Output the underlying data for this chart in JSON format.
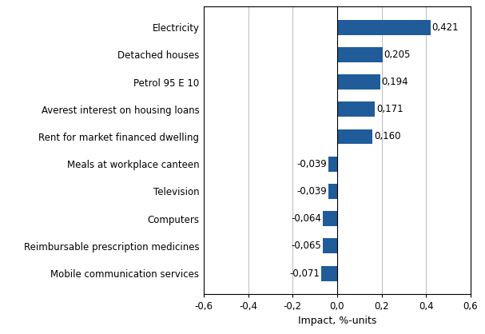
{
  "categories": [
    "Mobile communication services",
    "Reimbursable prescription medicines",
    "Computers",
    "Television",
    "Meals at workplace canteen",
    "Rent for market financed dwelling",
    "Averest interest on housing loans",
    "Petrol 95 E 10",
    "Detached houses",
    "Electricity"
  ],
  "values": [
    -0.071,
    -0.065,
    -0.064,
    -0.039,
    -0.039,
    0.16,
    0.171,
    0.194,
    0.205,
    0.421
  ],
  "bar_color": "#1F5C99",
  "xlabel": "Impact, %-units",
  "xlim": [
    -0.6,
    0.6
  ],
  "xticks": [
    -0.6,
    -0.4,
    -0.2,
    0.0,
    0.2,
    0.4,
    0.6
  ],
  "xtick_labels": [
    "-0,6",
    "-0,4",
    "-0,2",
    "0,0",
    "0,2",
    "0,4",
    "0,6"
  ],
  "value_labels": [
    "-0,071",
    "-0,065",
    "-0,064",
    "-0,039",
    "-0,039",
    "0,160",
    "0,171",
    "0,194",
    "0,205",
    "0,421"
  ],
  "background_color": "#ffffff",
  "grid_color": "#bbbbbb",
  "bar_height": 0.55,
  "label_fontsize": 8.5,
  "tick_fontsize": 8.5,
  "xlabel_fontsize": 9
}
